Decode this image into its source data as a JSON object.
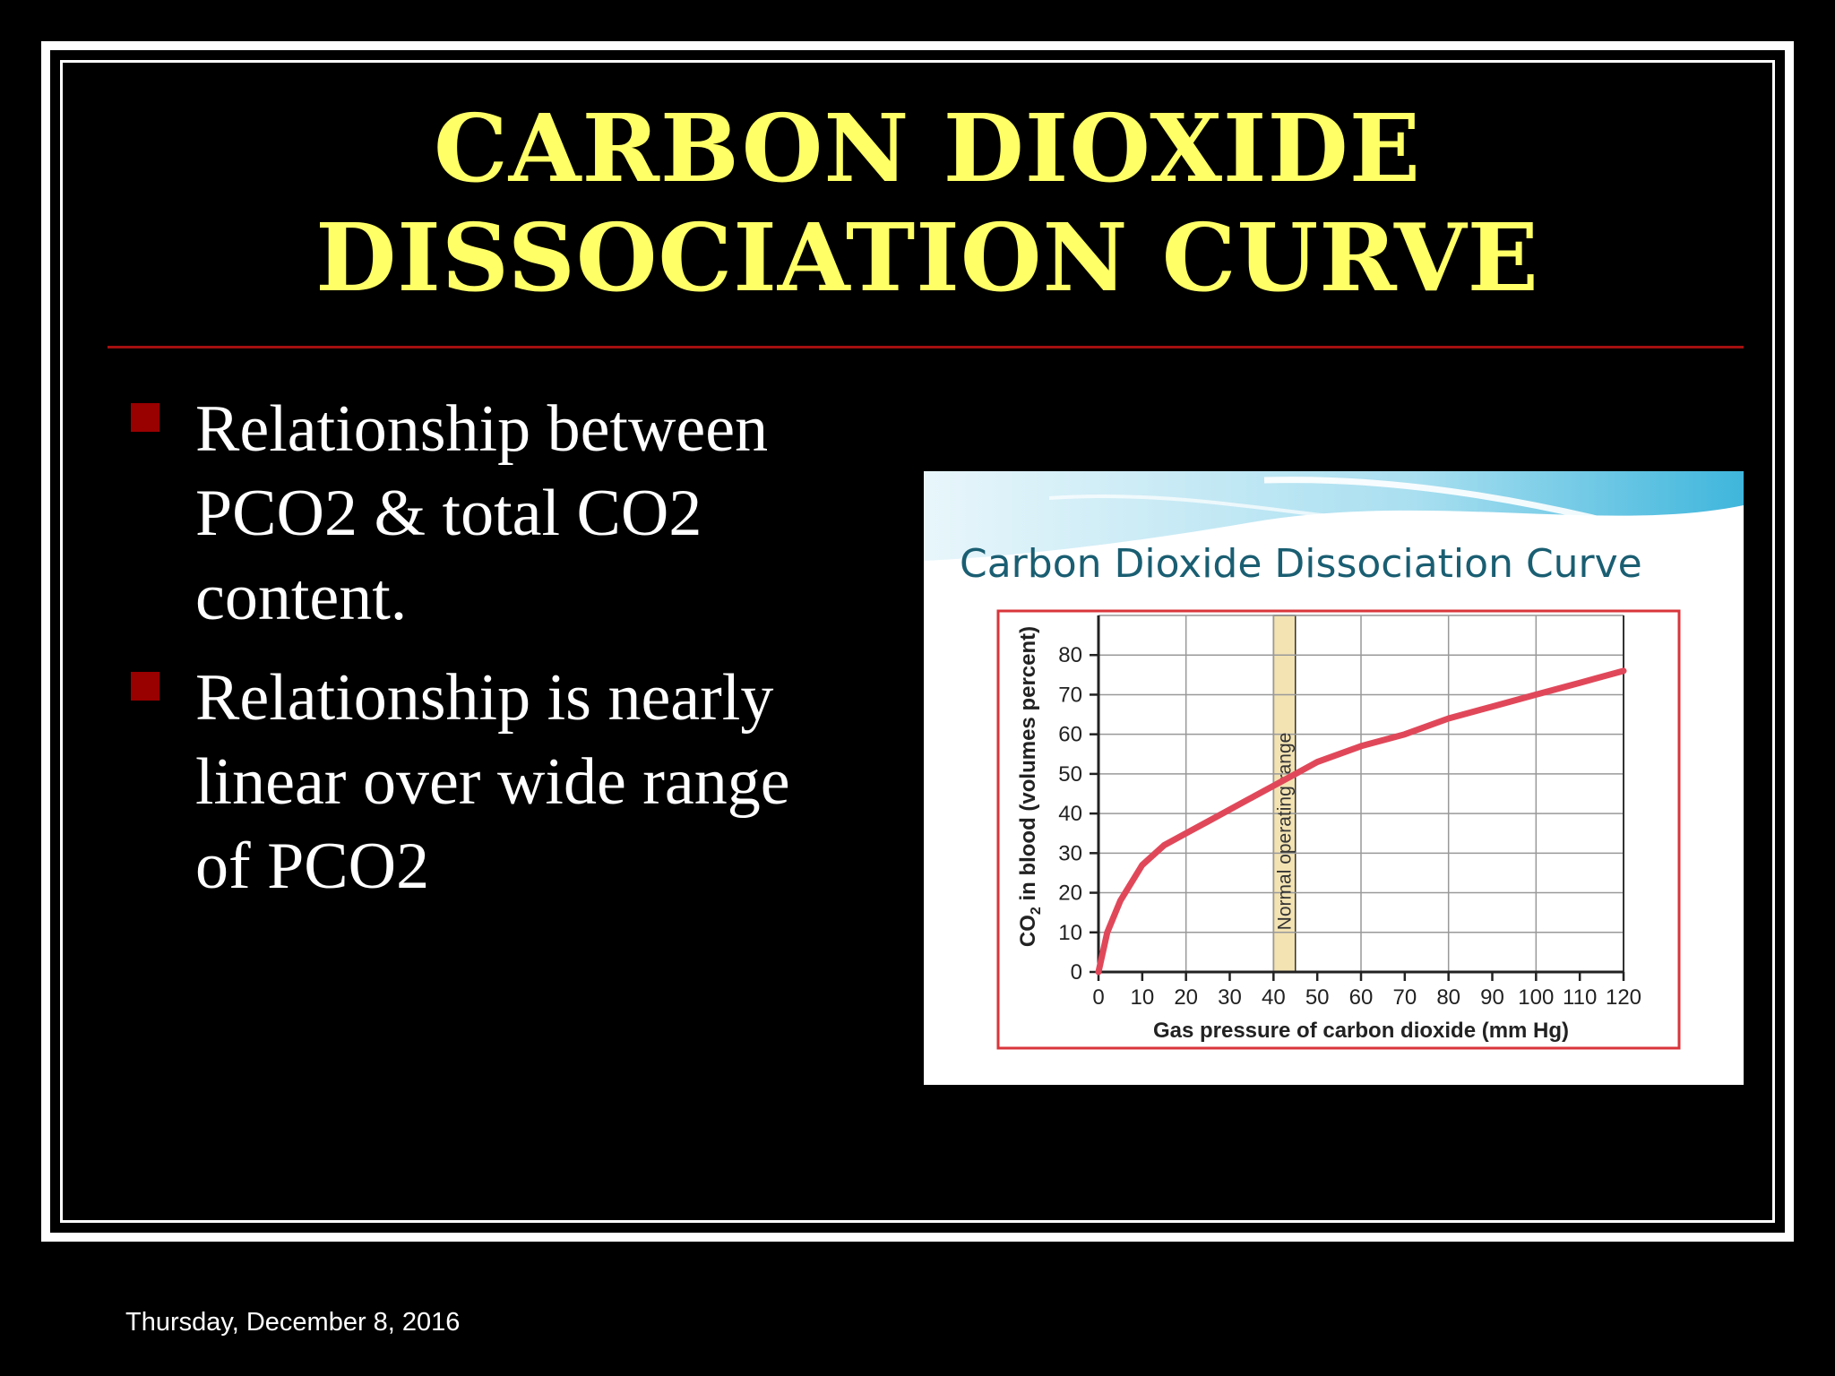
{
  "slide": {
    "title_line1": "CARBON DIOXIDE",
    "title_line2": "DISSOCIATION CURVE",
    "bullets": [
      {
        "lines": [
          "Relationship between",
          "PCO2 & total CO2",
          "content."
        ]
      },
      {
        "lines": [
          "Relationship is nearly",
          "linear over wide range",
          "of PCO2"
        ]
      }
    ],
    "footer_date": "Thursday, December 8, 2016",
    "colors": {
      "title": "#ffff66",
      "divider": "#a40f0f",
      "bullet_marker": "#990000",
      "curve": "#e0485a",
      "normal_band": "#f3e3b3"
    }
  },
  "chart_data": {
    "type": "line",
    "title": "Carbon Dioxide Dissociation Curve",
    "xlabel": "Gas pressure of carbon dioxide (mm Hg)",
    "ylabel_prefix": "CO",
    "ylabel_sub": "2",
    "ylabel_suffix": " in blood (volumes percent)",
    "xlim": [
      0,
      120
    ],
    "ylim": [
      0,
      90
    ],
    "x_ticks": [
      "0",
      "10",
      "20",
      "30",
      "40",
      "50",
      "60",
      "70",
      "80",
      "90",
      "100",
      "110",
      "120"
    ],
    "y_ticks": [
      "0",
      "10",
      "20",
      "30",
      "40",
      "50",
      "60",
      "70",
      "80"
    ],
    "grid": true,
    "band": {
      "label": "Normal operating range",
      "x_from": 40,
      "x_to": 45
    },
    "series": [
      {
        "x": [
          0,
          2,
          5,
          10,
          15,
          20,
          25,
          30,
          35,
          40,
          45,
          50,
          60,
          70,
          80,
          90,
          100,
          110,
          120
        ],
        "y": [
          0,
          10,
          18,
          27,
          32,
          35,
          38,
          41,
          44,
          47,
          50,
          53,
          57,
          60,
          64,
          67,
          70,
          73,
          76
        ]
      }
    ]
  }
}
